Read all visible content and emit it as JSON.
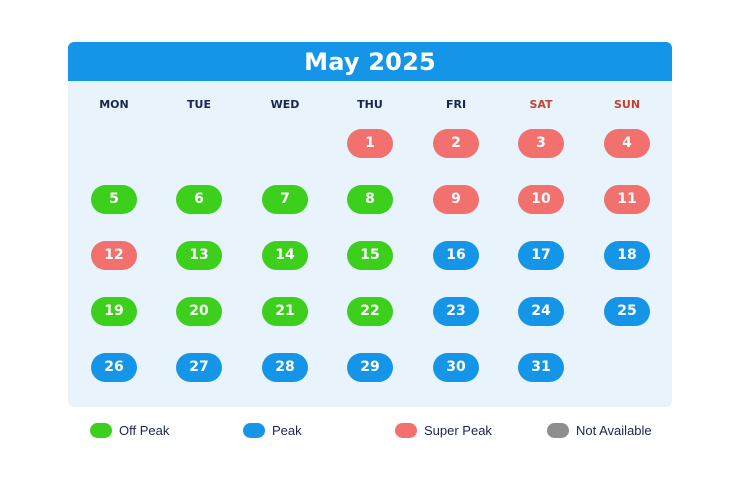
{
  "calendar": {
    "title": "May 2025",
    "weekdays": [
      "MON",
      "TUE",
      "WED",
      "THU",
      "FRI",
      "SAT",
      "SUN"
    ],
    "first_weekday_index": 3,
    "colors": {
      "header": "#1595e8",
      "background": "#e8f3fb",
      "weekday_text": "#1a2550",
      "weekend_text": "#c8402f"
    },
    "days": [
      {
        "day": "1",
        "status": "super_peak"
      },
      {
        "day": "2",
        "status": "super_peak"
      },
      {
        "day": "3",
        "status": "super_peak"
      },
      {
        "day": "4",
        "status": "super_peak"
      },
      {
        "day": "5",
        "status": "off_peak"
      },
      {
        "day": "6",
        "status": "off_peak"
      },
      {
        "day": "7",
        "status": "off_peak"
      },
      {
        "day": "8",
        "status": "off_peak"
      },
      {
        "day": "9",
        "status": "super_peak"
      },
      {
        "day": "10",
        "status": "super_peak"
      },
      {
        "day": "11",
        "status": "super_peak"
      },
      {
        "day": "12",
        "status": "super_peak"
      },
      {
        "day": "13",
        "status": "off_peak"
      },
      {
        "day": "14",
        "status": "off_peak"
      },
      {
        "day": "15",
        "status": "off_peak"
      },
      {
        "day": "16",
        "status": "peak"
      },
      {
        "day": "17",
        "status": "peak"
      },
      {
        "day": "18",
        "status": "peak"
      },
      {
        "day": "19",
        "status": "off_peak"
      },
      {
        "day": "20",
        "status": "off_peak"
      },
      {
        "day": "21",
        "status": "off_peak"
      },
      {
        "day": "22",
        "status": "off_peak"
      },
      {
        "day": "23",
        "status": "peak"
      },
      {
        "day": "24",
        "status": "peak"
      },
      {
        "day": "25",
        "status": "peak"
      },
      {
        "day": "26",
        "status": "peak"
      },
      {
        "day": "27",
        "status": "peak"
      },
      {
        "day": "28",
        "status": "peak"
      },
      {
        "day": "29",
        "status": "peak"
      },
      {
        "day": "30",
        "status": "peak"
      },
      {
        "day": "31",
        "status": "peak"
      }
    ]
  },
  "legend": [
    {
      "key": "off_peak",
      "label": "Off Peak",
      "color": "#3ccf1c"
    },
    {
      "key": "peak",
      "label": "Peak",
      "color": "#1595e8"
    },
    {
      "key": "super_peak",
      "label": "Super Peak",
      "color": "#f2706e"
    },
    {
      "key": "not_available",
      "label": "Not Available",
      "color": "#8e8e8e"
    }
  ]
}
